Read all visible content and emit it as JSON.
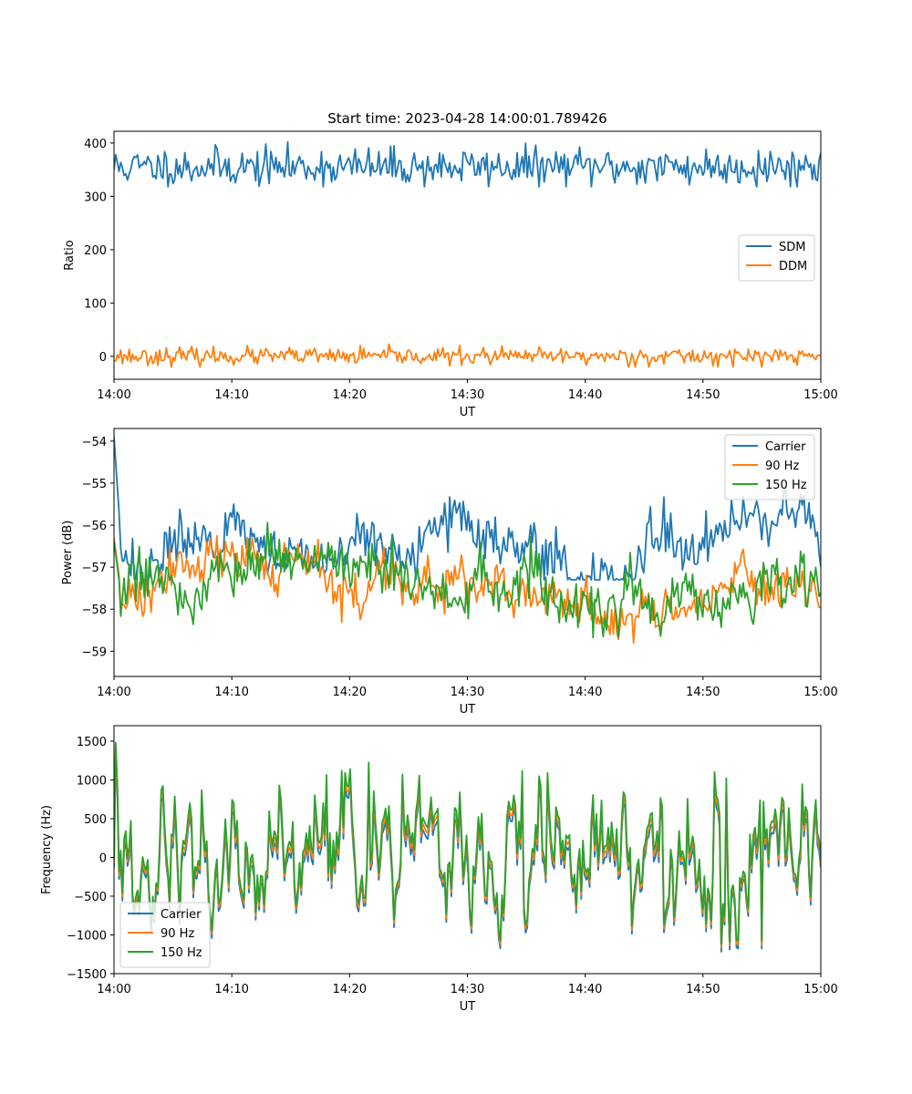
{
  "chart_data": [
    {
      "type": "line",
      "title": "Start time: 2023-04-28 14:00:01.789426",
      "xlabel": "UT",
      "ylabel": "Ratio",
      "xlim": [
        "14:00",
        "15:00"
      ],
      "ylim": [
        -43,
        422
      ],
      "xticks": [
        "14:00",
        "14:10",
        "14:20",
        "14:30",
        "14:40",
        "14:50",
        "15:00"
      ],
      "yticks": [
        0,
        100,
        200,
        300,
        400
      ],
      "legend": "center-right",
      "grid": false,
      "series": [
        {
          "name": "SDM",
          "color": "#1f77b4",
          "mean": 355,
          "amplitude": 18,
          "min": 318,
          "max": 402,
          "seed": 11
        },
        {
          "name": "DDM",
          "color": "#ff7f0e",
          "mean": 0,
          "amplitude": 8,
          "min": -20,
          "max": 23,
          "seed": 23
        }
      ]
    },
    {
      "type": "line",
      "title": "",
      "xlabel": "UT",
      "ylabel": "Power (dB)",
      "xlim": [
        "14:00",
        "15:00"
      ],
      "ylim": [
        -59.6,
        -53.7
      ],
      "xticks": [
        "14:00",
        "14:10",
        "14:20",
        "14:30",
        "14:40",
        "14:50",
        "15:00"
      ],
      "yticks": [
        -54,
        -55,
        -56,
        -57,
        -58,
        -59
      ],
      "legend": "top-right",
      "grid": false,
      "series": [
        {
          "name": "Carrier",
          "color": "#1f77b4",
          "mean": -56.4,
          "amplitude": 0.35,
          "min": -57.3,
          "max": -53.9,
          "seed": 5
        },
        {
          "name": "90 Hz",
          "color": "#ff7f0e",
          "mean": -57.5,
          "amplitude": 0.3,
          "min": -58.8,
          "max": -56.2,
          "seed": 17
        },
        {
          "name": "150 Hz",
          "color": "#2ca02c",
          "mean": -57.6,
          "amplitude": 0.35,
          "min": -59.3,
          "max": -55.8,
          "seed": 29
        }
      ]
    },
    {
      "type": "line",
      "title": "",
      "xlabel": "UT",
      "ylabel": "Frequency (Hz)",
      "xlim": [
        "14:00",
        "15:00"
      ],
      "ylim": [
        -1500,
        1700
      ],
      "xticks": [
        "14:00",
        "14:10",
        "14:20",
        "14:30",
        "14:40",
        "14:50",
        "15:00"
      ],
      "yticks": [
        1500,
        1000,
        500,
        0,
        -500,
        -1000,
        -1500
      ],
      "legend": "bottom-left",
      "grid": false,
      "series": [
        {
          "name": "Carrier",
          "color": "#1f77b4",
          "offset": -80,
          "min": -1370,
          "max": 1450
        },
        {
          "name": "90 Hz",
          "color": "#ff7f0e",
          "offset": -30,
          "min": -1300,
          "max": 1500
        },
        {
          "name": "150 Hz",
          "color": "#2ca02c",
          "offset": 20,
          "min": -1250,
          "max": 1540
        }
      ]
    }
  ]
}
